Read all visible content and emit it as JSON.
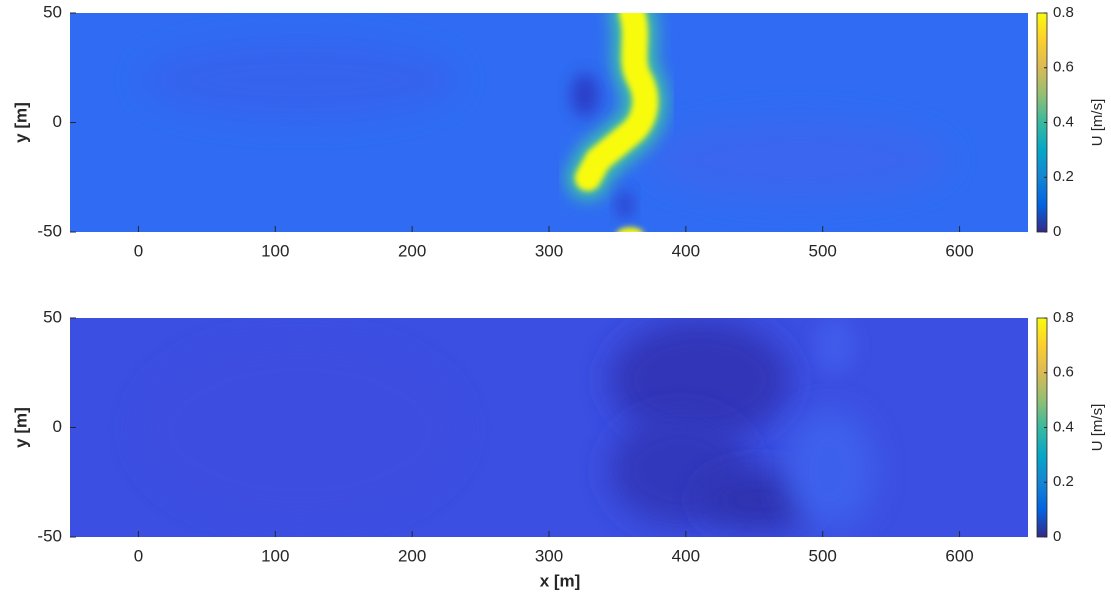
{
  "chart_data": [
    {
      "type": "heatmap",
      "ylabel": "y [m]",
      "colorbar_label": "U [m/s]",
      "xlim": [
        -50,
        650
      ],
      "xticks": [
        0,
        100,
        200,
        300,
        400,
        500,
        600
      ],
      "ylim": [
        -50,
        50
      ],
      "yticks": [
        -50,
        0,
        50
      ],
      "clim": [
        0,
        0.8
      ],
      "cticks": [
        0,
        0.2,
        0.4,
        0.6,
        0.8
      ],
      "colormap": [
        "#352a87",
        "#0363e1",
        "#1485d4",
        "#06a7c6",
        "#38b99e",
        "#92bf73",
        "#d9ba56",
        "#fcce2e",
        "#f9fb0e"
      ]
    },
    {
      "type": "heatmap",
      "ylabel": "y [m]",
      "xlabel": "x [m]",
      "colorbar_label": "U [m/s]",
      "xlim": [
        -50,
        650
      ],
      "xticks": [
        0,
        100,
        200,
        300,
        400,
        500,
        600
      ],
      "ylim": [
        -50,
        50
      ],
      "yticks": [
        -50,
        0,
        50
      ],
      "clim": [
        0,
        0.8
      ],
      "cticks": [
        0,
        0.2,
        0.4,
        0.6,
        0.8
      ],
      "colormap": [
        "#352a87",
        "#0363e1",
        "#1485d4",
        "#06a7c6",
        "#38b99e",
        "#92bf73",
        "#d9ba56",
        "#fcce2e",
        "#f9fb0e"
      ]
    }
  ]
}
